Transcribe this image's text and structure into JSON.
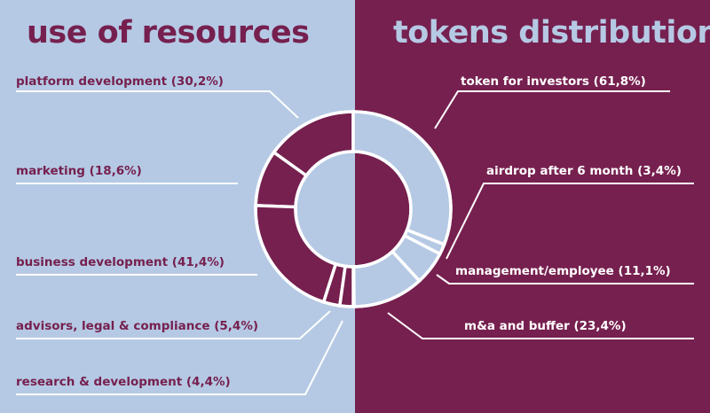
{
  "titles": {
    "left": "use of resources",
    "right": "tokens distribution"
  },
  "colors": {
    "light": "#b5c9e4",
    "dark": "#76204f",
    "line": "#ffffff"
  },
  "chart_data": [
    {
      "type": "pie",
      "title": "use of resources",
      "segments": [
        {
          "label": "platform development (30,2%)",
          "value": 30.2
        },
        {
          "label": "marketing (18,6%)",
          "value": 18.6
        },
        {
          "label": "business development (41,4%)",
          "value": 41.4
        },
        {
          "label": "advisors, legal & compliance (5,4%)",
          "value": 5.4
        },
        {
          "label": "research & development (4,4%)",
          "value": 4.4
        }
      ]
    },
    {
      "type": "pie",
      "title": "tokens distribution",
      "segments": [
        {
          "label": "token for investors (61,8%)",
          "value": 61.8
        },
        {
          "label": "airdrop after 6 month (3,4%)",
          "value": 3.4
        },
        {
          "label": "management/employee (11,1%)",
          "value": 11.1
        },
        {
          "label": "m&a and buffer (23,4%)",
          "value": 23.4
        }
      ]
    }
  ]
}
